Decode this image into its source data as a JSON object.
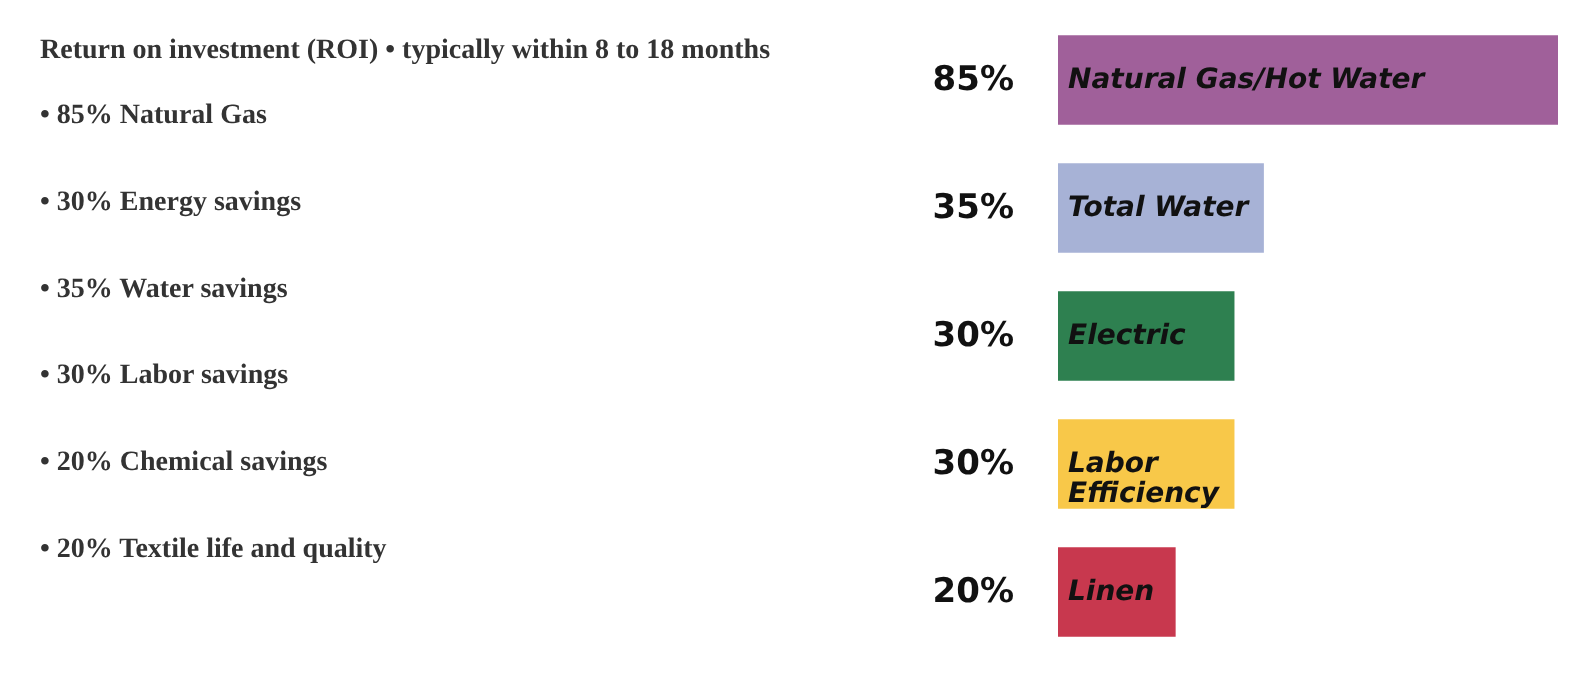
{
  "chart_data": [
    {
      "type": "other",
      "title": "Return on investment (ROI) • typically within 8 to 18 months",
      "annotations": [
        "• 85% Natural Gas",
        "• 30% Energy savings",
        "• 35% Water savings",
        "• 30% Labor savings",
        "• 20% Chemical savings",
        "• 20% Textile life and quality"
      ]
    },
    {
      "type": "bar",
      "orientation": "horizontal",
      "categories": [
        "Natural Gas/Hot Water",
        "Total Water",
        "Electric",
        "Labor Efficiency",
        "Linen"
      ],
      "values": [
        85,
        35,
        30,
        30,
        20
      ],
      "colors": [
        "#a0609a",
        "#a7b2d6",
        "#2e8050",
        "#f8c849",
        "#c8384e"
      ],
      "value_labels": [
        "85%",
        "35%",
        "30%",
        "30%",
        "20%"
      ]
    }
  ]
}
